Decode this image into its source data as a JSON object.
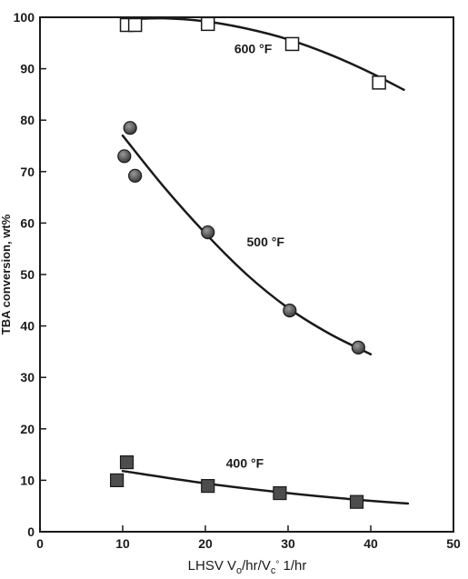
{
  "chart_data": {
    "type": "scatter",
    "title": "",
    "xlabel": {
      "prefix": "LHSV V",
      "sub1": "o",
      "mid": "/hr/V",
      "sub2": "c",
      "sup2": "°",
      "suffix": " 1/hr"
    },
    "ylabel": "TBA conversion, wt%",
    "xlim": [
      0,
      50
    ],
    "ylim": [
      0,
      100
    ],
    "x_ticks": [
      0,
      10,
      20,
      30,
      40,
      50
    ],
    "y_ticks": [
      0,
      10,
      20,
      30,
      40,
      50,
      60,
      70,
      80,
      90,
      100
    ],
    "grid": false,
    "legend": "inline",
    "series": [
      {
        "name": "600 °F",
        "marker": "open-square",
        "points": [
          [
            10.5,
            98.5
          ],
          [
            11.5,
            98.5
          ],
          [
            20.3,
            98.7
          ],
          [
            30.5,
            94.8
          ],
          [
            41.0,
            87.3
          ]
        ],
        "fit": [
          [
            10,
            99.6
          ],
          [
            15,
            99.8
          ],
          [
            20,
            99.2
          ],
          [
            25,
            97.8
          ],
          [
            30,
            95.7
          ],
          [
            35,
            92.8
          ],
          [
            40,
            89.2
          ],
          [
            44,
            85.9
          ]
        ],
        "label_at": [
          23.5,
          93.0
        ]
      },
      {
        "name": "500 °F",
        "marker": "filled-circle",
        "points": [
          [
            10.2,
            73.0
          ],
          [
            10.9,
            78.5
          ],
          [
            11.5,
            69.2
          ],
          [
            20.3,
            58.2
          ],
          [
            30.2,
            43.0
          ],
          [
            38.5,
            35.8
          ]
        ],
        "fit": [
          [
            10,
            77
          ],
          [
            15,
            67
          ],
          [
            20,
            58
          ],
          [
            25,
            50
          ],
          [
            30,
            43.5
          ],
          [
            35,
            38.5
          ],
          [
            40,
            34.5
          ]
        ],
        "label_at": [
          25.0,
          55.5
        ]
      },
      {
        "name": "400 °F",
        "marker": "filled-square",
        "points": [
          [
            9.3,
            10.0
          ],
          [
            10.5,
            13.5
          ],
          [
            20.3,
            8.9
          ],
          [
            29.0,
            7.5
          ],
          [
            38.3,
            5.8
          ]
        ],
        "fit": [
          [
            10,
            11.8
          ],
          [
            20,
            9.4
          ],
          [
            30,
            7.5
          ],
          [
            40,
            6.0
          ],
          [
            44.5,
            5.5
          ]
        ],
        "label_at": [
          22.5,
          12.5
        ]
      }
    ]
  }
}
